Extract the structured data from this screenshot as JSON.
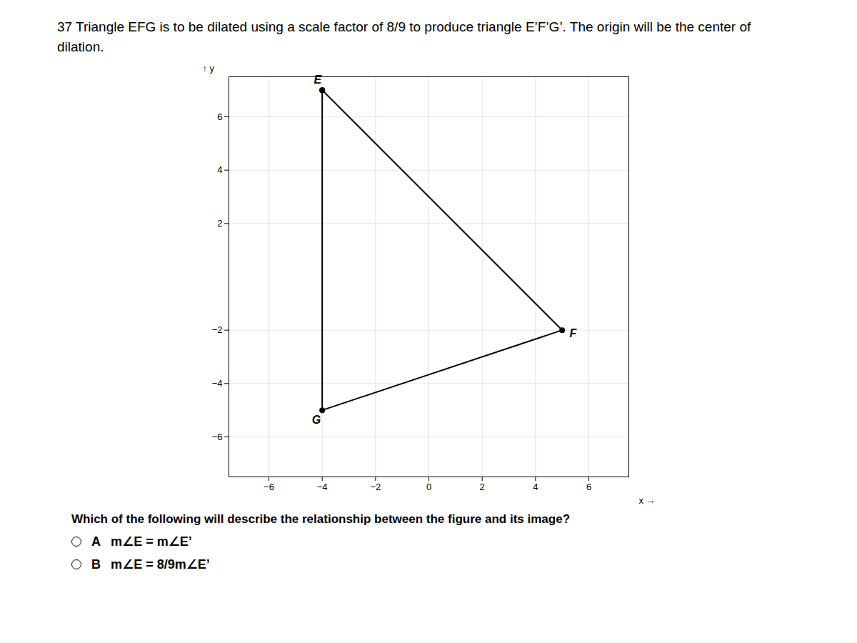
{
  "chart_data": {
    "type": "line",
    "title": "37  Triangle EFG is to be dilated using a scale factor of 8/9 to produce triangle E’F’G’. The origin will be the center of dilation.",
    "subtitle": "Which of the following will describe the relationship between the figure and its image?",
    "xlabel": "x",
    "ylabel": "y",
    "x": [
      -4,
      5,
      -4,
      -4
    ],
    "values": [
      7,
      -2,
      -5,
      7
    ],
    "color": "#000000",
    "marker": "circle",
    "xlim": [
      -7.5,
      7.5
    ],
    "ylim": [
      -7.5,
      7.5
    ],
    "xticks": [
      -6,
      -4,
      -2,
      0,
      2,
      4,
      6
    ],
    "yticks": [
      -6,
      -4,
      -2,
      2,
      4,
      6
    ],
    "grid": true,
    "annotations": [
      {
        "x": -4,
        "y": 7,
        "text": "E"
      },
      {
        "x": 5,
        "y": -2,
        "text": "F"
      },
      {
        "x": -4,
        "y": -5,
        "text": "G"
      }
    ],
    "options": [
      {
        "label": "A",
        "text": "m∠E = m∠E’"
      },
      {
        "label": "B",
        "text": "m∠E = 8/9m∠E’"
      }
    ]
  }
}
